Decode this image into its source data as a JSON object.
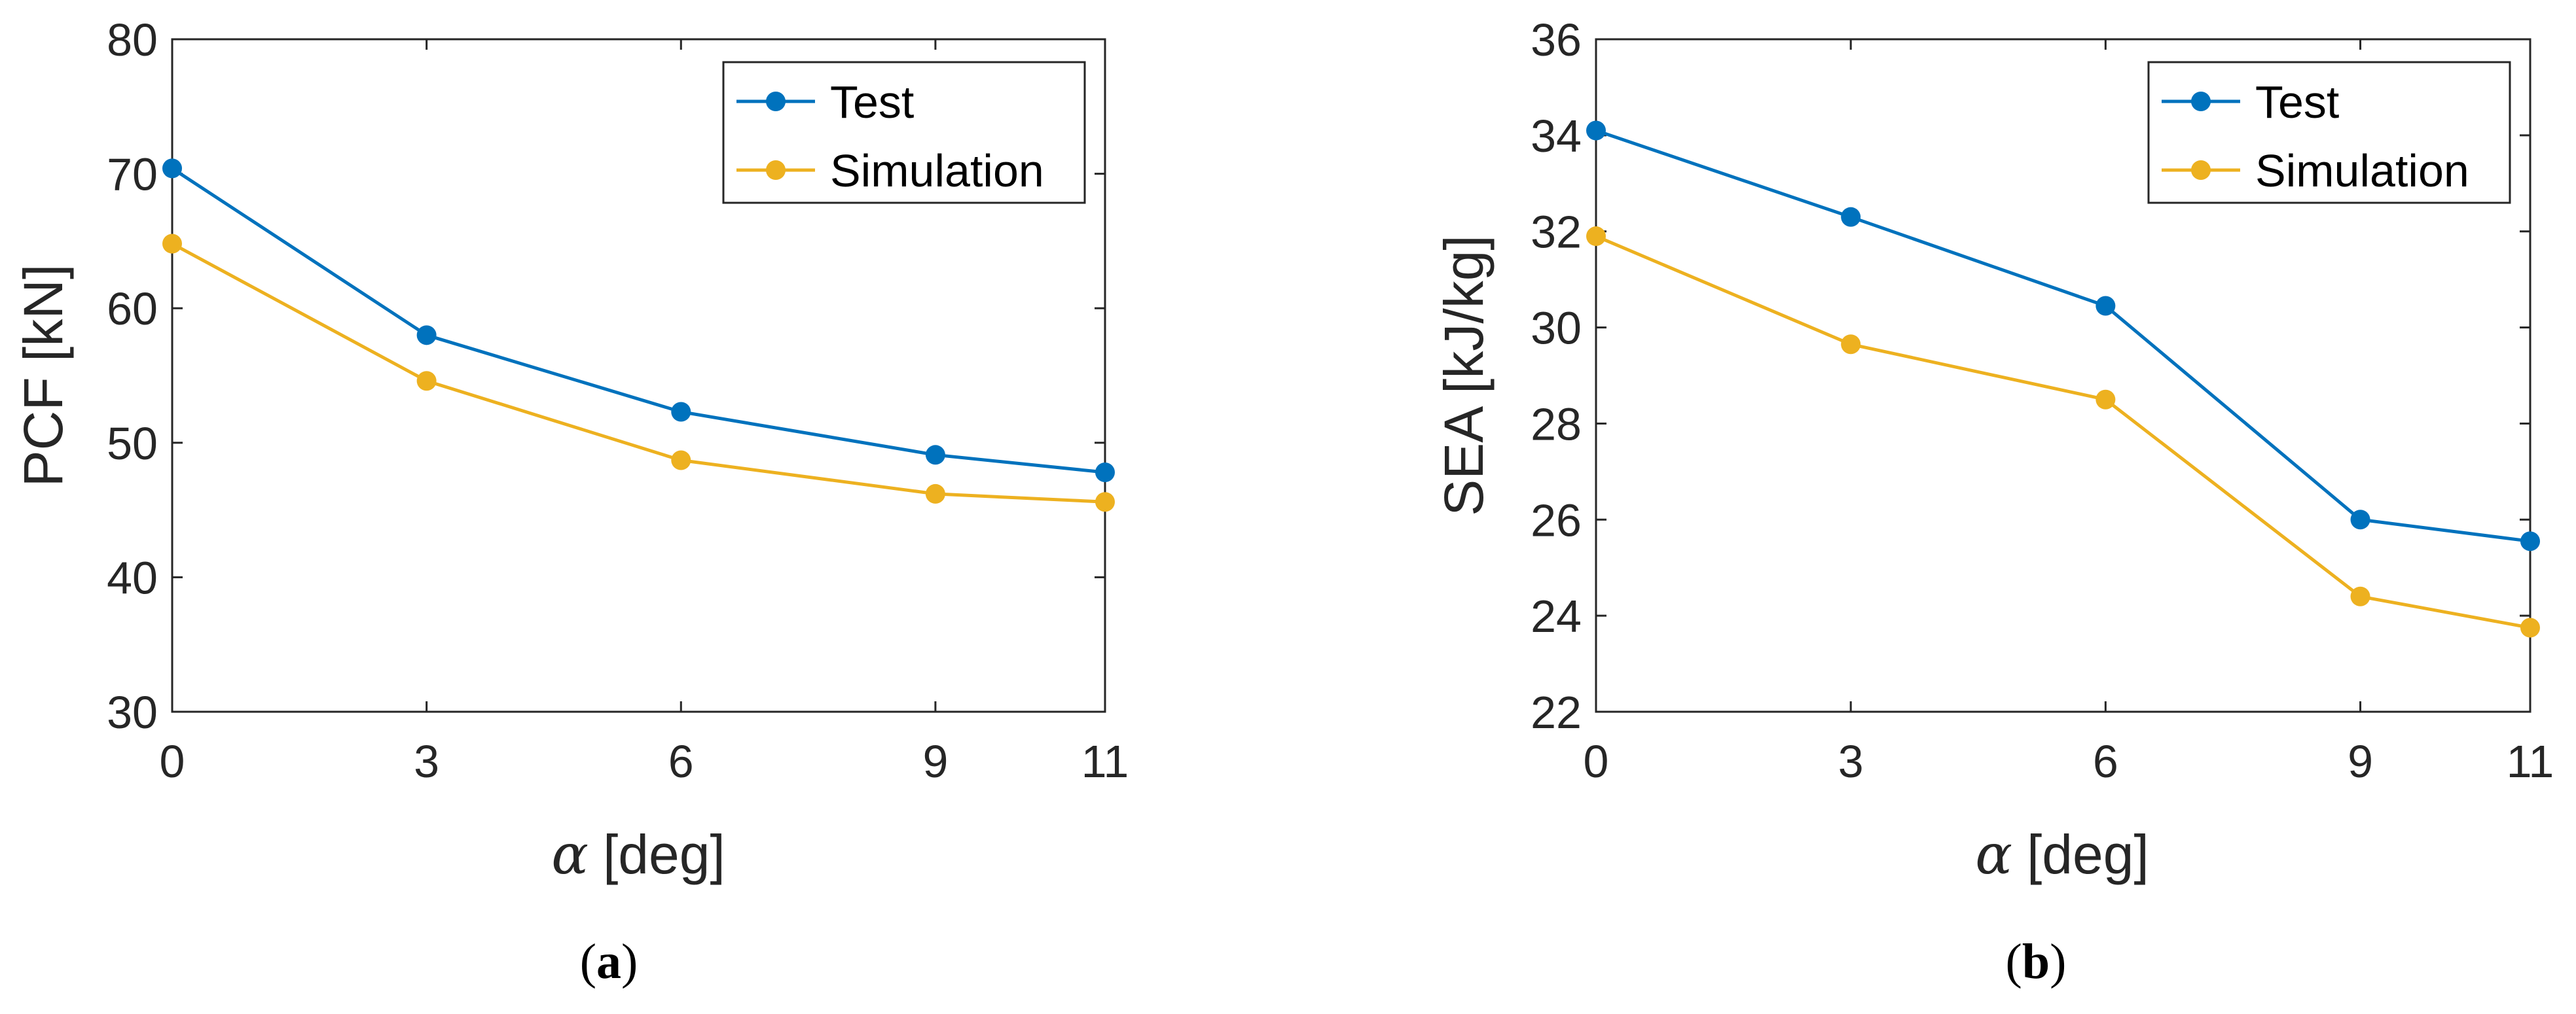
{
  "chart_data": [
    {
      "type": "line",
      "x": [
        0,
        3,
        6,
        9,
        11
      ],
      "xticks": [
        "0",
        "3",
        "6",
        "9",
        "11"
      ],
      "xlim": [
        0,
        11
      ],
      "ylim": [
        30,
        80
      ],
      "yticks": [
        "30",
        "40",
        "50",
        "60",
        "70",
        "80"
      ],
      "xlabel_symbol": "α",
      "xlabel_unit": "[deg]",
      "ylabel": "PCF [kN]",
      "legend_position": "top-right",
      "grid": false,
      "series": [
        {
          "name": "Test",
          "color": "#0072BD",
          "values": [
            70.4,
            58.0,
            52.3,
            49.1,
            47.8
          ]
        },
        {
          "name": "Simulation",
          "color": "#EDB120",
          "values": [
            64.8,
            54.6,
            48.7,
            46.2,
            45.6
          ]
        }
      ],
      "caption_open": "(",
      "caption_letter": "a",
      "caption_close": ")"
    },
    {
      "type": "line",
      "x": [
        0,
        3,
        6,
        9,
        11
      ],
      "xticks": [
        "0",
        "3",
        "6",
        "9",
        "11"
      ],
      "xlim": [
        0,
        11
      ],
      "ylim": [
        22,
        36
      ],
      "yticks": [
        "22",
        "24",
        "26",
        "28",
        "30",
        "32",
        "34",
        "36"
      ],
      "xlabel_symbol": "α",
      "xlabel_unit": "[deg]",
      "ylabel": "SEA [kJ/kg]",
      "legend_position": "top-right",
      "grid": false,
      "series": [
        {
          "name": "Test",
          "color": "#0072BD",
          "values": [
            34.1,
            32.3,
            30.45,
            26.0,
            25.55
          ]
        },
        {
          "name": "Simulation",
          "color": "#EDB120",
          "values": [
            31.9,
            29.65,
            28.5,
            24.4,
            23.75
          ]
        }
      ],
      "caption_open": "(",
      "caption_letter": "b",
      "caption_close": ")"
    }
  ]
}
